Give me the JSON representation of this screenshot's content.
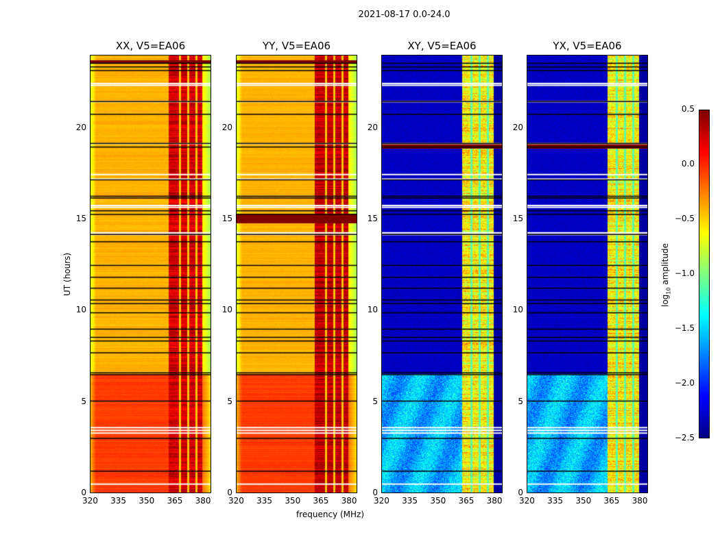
{
  "figure_title": "2021-08-17 0.0-24.0",
  "chart_data": {
    "type": "heatmap",
    "title": "2021-08-17 0.0-24.0",
    "xlabel": "frequency (MHz)",
    "ylabel": "UT (hours)",
    "xlim": [
      320,
      384.5
    ],
    "ylim": [
      0,
      24
    ],
    "xticks": [
      "320",
      "335",
      "350",
      "365",
      "380"
    ],
    "xtick_values": [
      320,
      335,
      350,
      365,
      380
    ],
    "yticks": [
      "0",
      "5",
      "10",
      "15",
      "20"
    ],
    "ytick_values": [
      0,
      5,
      10,
      15,
      20
    ],
    "colormap": "jet",
    "colorbar": {
      "label": "log10 amplitude",
      "label_main": "log",
      "label_sub": "10",
      "label_rest": " amplitude",
      "range": [
        -2.5,
        0.5
      ],
      "ticks": [
        "0.5",
        "0.0",
        "−0.5",
        "−1.0",
        "−1.5",
        "−2.0",
        "−2.5"
      ],
      "tick_values": [
        0.5,
        0.0,
        -0.5,
        -1.0,
        -1.5,
        -2.0,
        -2.5
      ]
    },
    "panels": [
      {
        "title": "XX, V5=EA06",
        "kind": "parallel",
        "base_before_6.5h": -0.05,
        "base_after_6.5h": -0.4,
        "rfi_band_mhz": [
          362,
          380
        ],
        "rfi_level": 0.25
      },
      {
        "title": "YY, V5=EA06",
        "kind": "parallel",
        "base_before_6.5h": -0.05,
        "base_after_6.5h": -0.4,
        "rfi_band_mhz": [
          362,
          380
        ],
        "rfi_level": 0.3
      },
      {
        "title": "XY, V5=EA06",
        "kind": "cross",
        "base_before_6.5h": -1.6,
        "base_after_6.5h": -2.3,
        "rfi_band_mhz": [
          363,
          380
        ],
        "rfi_level": -0.6
      },
      {
        "title": "YX, V5=EA06",
        "kind": "cross",
        "base_before_6.5h": -1.6,
        "base_after_6.5h": -2.3,
        "rfi_band_mhz": [
          363,
          380
        ],
        "rfi_level": -0.6
      }
    ],
    "rfi_gap_frequencies_mhz": [
      368,
      372.5,
      377
    ],
    "flagged_white_hours": [
      22.5,
      22.4,
      21.5,
      19.2,
      17.5,
      17.25,
      15.8,
      15.7,
      14.3,
      14.2,
      3.6,
      3.45,
      3.3,
      0.5
    ],
    "black_line_hours": [
      23.6,
      23.4,
      23.2,
      21.5,
      20.8,
      19.2,
      19.0,
      17.2,
      16.3,
      16.2,
      15.5,
      15.3,
      14.2,
      13.8,
      12.5,
      11.85,
      11.25,
      10.6,
      10.4,
      9.9,
      9.0,
      8.55,
      8.35,
      7.7,
      6.6,
      6.5,
      5.05,
      3.0,
      1.2
    ]
  }
}
